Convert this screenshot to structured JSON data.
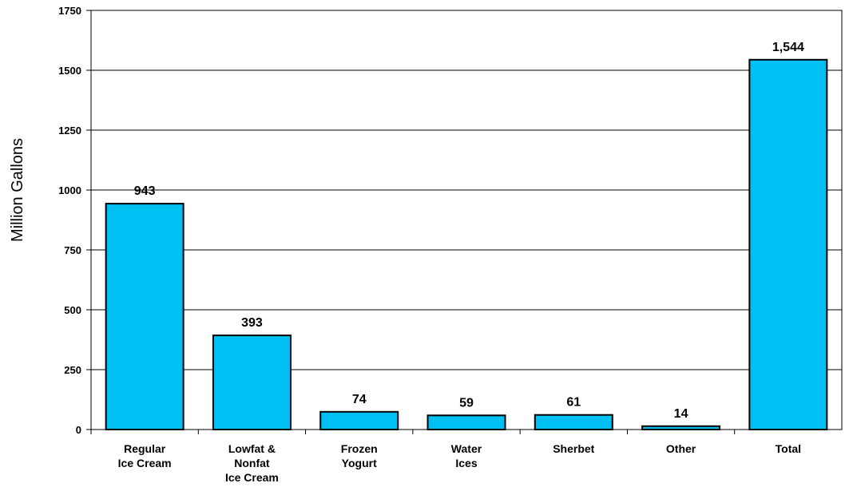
{
  "chart_data": {
    "type": "bar",
    "title": "",
    "xlabel": "",
    "ylabel": "Million Gallons",
    "categories": [
      [
        "Regular",
        "Ice Cream"
      ],
      [
        "Lowfat &",
        "Nonfat",
        "Ice Cream"
      ],
      [
        "Frozen",
        "Yogurt"
      ],
      [
        "Water",
        "Ices"
      ],
      [
        "Sherbet"
      ],
      [
        "Other"
      ],
      [
        "Total"
      ]
    ],
    "values": [
      943,
      393,
      74,
      59,
      61,
      14,
      1544
    ],
    "data_labels": [
      "943",
      "393",
      "74",
      "59",
      "61",
      "14",
      "1,544"
    ],
    "ylim": [
      0,
      1750
    ],
    "yticks": [
      0,
      250,
      500,
      750,
      1000,
      1250,
      1500,
      1750
    ],
    "grid": true,
    "bar_color": "#00BFF3",
    "bar_edge_color": "#000000"
  }
}
